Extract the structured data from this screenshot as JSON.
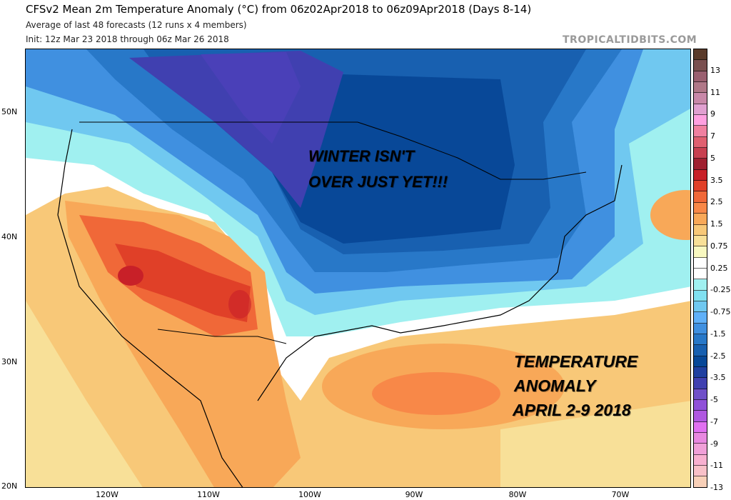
{
  "header": {
    "title": "CFSv2 Mean 2m Temperature Anomaly (°C) from 06z02Apr2018 to 06z09Apr2018 (Days 8-14)",
    "subtitle": "Average of last 48 forecasts (12 runs x 4 members)",
    "init": "Init: 12z Mar 23 2018 through 06z Mar 26 2018"
  },
  "watermark": "TROPICALTIDBITS.COM",
  "annotations": {
    "winter_line1": "WINTER ISN'T",
    "winter_line2": "OVER JUST YET!!!",
    "anomaly_line1": "TEMPERATURE",
    "anomaly_line2": "ANOMALY",
    "anomaly_line3": "APRIL 2-9 2018"
  },
  "axes": {
    "lat_labels": [
      "50N",
      "40N",
      "30N",
      "20N"
    ],
    "lon_labels": [
      "120W",
      "110W",
      "100W",
      "90W",
      "80W",
      "70W"
    ]
  },
  "colorbar": {
    "labels": [
      "13",
      "11",
      "9",
      "7",
      "5",
      "3.5",
      "2.5",
      "1.5",
      "0.75",
      "0.25",
      "-0.25",
      "-0.75",
      "-1.5",
      "-2.5",
      "-3.5",
      "-5",
      "-7",
      "-9",
      "-11",
      "-13"
    ],
    "colors": [
      "#5a3a2a",
      "#7a5050",
      "#9a6070",
      "#b07888",
      "#c888a8",
      "#e0a0d0",
      "#ffa0e0",
      "#f080a0",
      "#e06070",
      "#c84050",
      "#a02030",
      "#c82028",
      "#e04028",
      "#f06838",
      "#f88848",
      "#f8a858",
      "#f8c878",
      "#f8e098",
      "#f8f8c0",
      "#ffffff",
      "#ffffff",
      "#a0f0f0",
      "#80e0f0",
      "#70c8f0",
      "#60b0f8",
      "#4090e0",
      "#2878c8",
      "#1860b0",
      "#084898",
      "#2040a0",
      "#4040b0",
      "#7050c8",
      "#9050d8",
      "#b058e0",
      "#e070f0",
      "#e888e0",
      "#f0a0d8",
      "#f8b0d0",
      "#f8c0c8",
      "#f8d0b8"
    ]
  }
}
